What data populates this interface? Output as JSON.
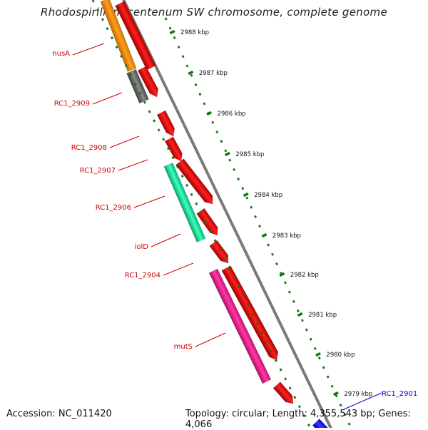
{
  "title": "Rhodospirillum centenum SW chromosome, complete genome",
  "footer": {
    "accession": "Accession: NC_011420",
    "topology": "Topology: circular; Length: 4,355,543 bp; Genes: 4,066"
  },
  "scale_ticks": [
    "2988 kbp",
    "2987 kbp",
    "2986 kbp",
    "2985 kbp",
    "2984 kbp",
    "2983 kbp",
    "2982 kbp",
    "2981 kbp",
    "2980 kbp",
    "2979 kbp"
  ],
  "gene_labels": [
    {
      "name": "nusA",
      "color": "#cc0000"
    },
    {
      "name": "RC1_2909",
      "color": "#cc0000"
    },
    {
      "name": "RC1_2908",
      "color": "#cc0000"
    },
    {
      "name": "RC1_2907",
      "color": "#cc0000"
    },
    {
      "name": "RC1_2906",
      "color": "#cc0000"
    },
    {
      "name": "iolD",
      "color": "#cc0000"
    },
    {
      "name": "RC1_2904",
      "color": "#cc0000"
    },
    {
      "name": "mutS",
      "color": "#cc0000"
    },
    {
      "name": "RC1_2901",
      "color": "#0000cc"
    }
  ],
  "colors": {
    "cds": "#ff0000",
    "nusA": "#ff8c00",
    "RC1_2909": "#707070",
    "iolD": "#00f5a0",
    "mutS": "#ff1493",
    "RC1_2901": "#1a1aff",
    "backbone": "#8a8a8a",
    "ticks": "#0a7a0a"
  }
}
